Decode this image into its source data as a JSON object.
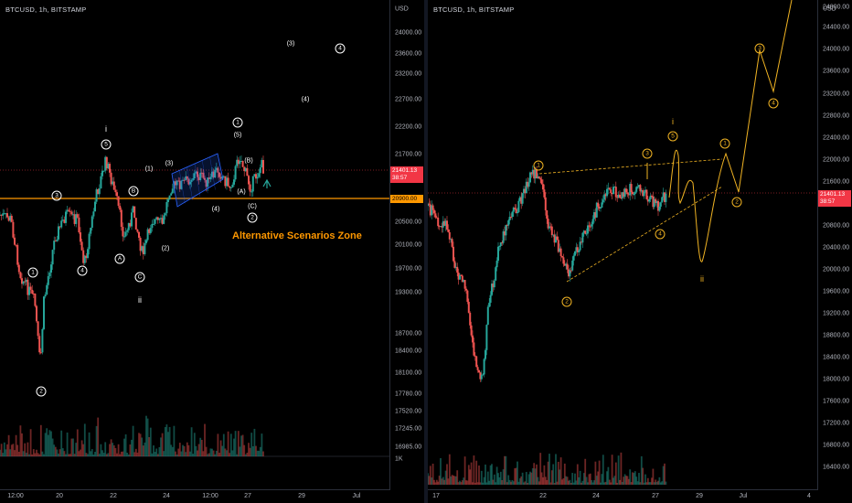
{
  "left": {
    "symbol": "BTCUSD, 1h, BITSTAMP",
    "currency": "USD",
    "price_ticks": [
      "24000.00",
      "23600.00",
      "23200.00",
      "22700.00",
      "22200.00",
      "21700.00",
      "20500.00",
      "20100.00",
      "19700.00",
      "19300.00",
      "18700.00",
      "18400.00",
      "18100.00",
      "17780.00",
      "17520.00",
      "17245.00",
      "16985.00"
    ],
    "volume_tick": "1K",
    "time_ticks": [
      "12:00",
      "20",
      "22",
      "24",
      "12:00",
      "27",
      "29",
      "Jul"
    ],
    "price_tag": {
      "price": "21401.13",
      "countdown": "38:57"
    },
    "level_tag": "20900.00",
    "zone_label": "Alternative Scenarios Zone",
    "wave_labels": [
      "1",
      "2",
      "3",
      "4",
      "5",
      "i",
      "A",
      "B",
      "C",
      "ii",
      "1",
      "2",
      "3",
      "4",
      "5",
      "A",
      "B",
      "C",
      "1",
      "2",
      "3",
      "4",
      "1",
      "(3)",
      "(4)",
      "(1)",
      "(2)",
      "(3)",
      "(4)",
      "(5)",
      "(A)",
      "(B)",
      "(C)",
      "(1)",
      "(2)"
    ]
  },
  "right": {
    "symbol": "BTCUSD, 1h, BITSTAMP",
    "currency": "USD",
    "price_ticks": [
      "24800.00",
      "24400.00",
      "24000.00",
      "23600.00",
      "23200.00",
      "22800.00",
      "22400.00",
      "22000.00",
      "21600.00",
      "20800.00",
      "20400.00",
      "20000.00",
      "19600.00",
      "19200.00",
      "18800.00",
      "18400.00",
      "18000.00",
      "17600.00",
      "17200.00",
      "16800.00",
      "16400.00"
    ],
    "time_ticks": [
      "17",
      "22",
      "24",
      "27",
      "29",
      "Jul",
      "4"
    ],
    "price_tag": {
      "price": "21401.13",
      "countdown": "38:57"
    },
    "wave_labels": [
      "1",
      "2",
      "3",
      "4",
      "5",
      "i",
      "1",
      "2",
      "3",
      "4",
      "ii"
    ]
  },
  "colors": {
    "up": "#26a69a",
    "down": "#ef5350",
    "level": "#ff9800",
    "projection": "#f0b323",
    "channel": "#2962ff",
    "tag": "#f23645"
  }
}
